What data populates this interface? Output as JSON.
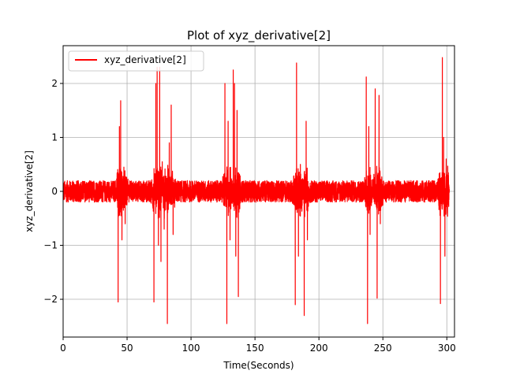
{
  "chart_data": {
    "type": "line",
    "title": "Plot of xyz_derivative[2]",
    "xlabel": "Time(Seconds)",
    "ylabel": "xyz_derivative[2]",
    "xlim": [
      0,
      306
    ],
    "ylim": [
      -2.7,
      2.7
    ],
    "xticks": [
      0,
      50,
      100,
      150,
      200,
      250,
      300
    ],
    "yticks": [
      -2,
      -1,
      0,
      1,
      2
    ],
    "grid": true,
    "legend_position": "top-left",
    "series": [
      {
        "name": "xyz_derivative[2]",
        "color": "#ff0000",
        "noise_amplitude": 0.2,
        "x_range": [
          0,
          302
        ],
        "events": [
          {
            "x": 43.0,
            "y": -2.05
          },
          {
            "x": 44.0,
            "y": 1.2
          },
          {
            "x": 45.0,
            "y": 1.68
          },
          {
            "x": 46.0,
            "y": -0.9
          },
          {
            "x": 47.5,
            "y": 0.45
          },
          {
            "x": 48.5,
            "y": -0.6
          },
          {
            "x": 71.0,
            "y": -2.05
          },
          {
            "x": 72.5,
            "y": 2.0
          },
          {
            "x": 73.5,
            "y": 2.3
          },
          {
            "x": 74.5,
            "y": -1.0
          },
          {
            "x": 75.5,
            "y": 2.3
          },
          {
            "x": 76.5,
            "y": -1.3
          },
          {
            "x": 77.5,
            "y": 0.55
          },
          {
            "x": 79.0,
            "y": -0.7
          },
          {
            "x": 81.5,
            "y": -2.45
          },
          {
            "x": 83.0,
            "y": 0.9
          },
          {
            "x": 84.5,
            "y": 1.6
          },
          {
            "x": 86.0,
            "y": -0.8
          },
          {
            "x": 126.5,
            "y": 2.0
          },
          {
            "x": 128.0,
            "y": -2.45
          },
          {
            "x": 129.0,
            "y": 1.3
          },
          {
            "x": 130.5,
            "y": -0.9
          },
          {
            "x": 133.0,
            "y": 2.25
          },
          {
            "x": 134.0,
            "y": 2.0
          },
          {
            "x": 135.0,
            "y": -1.2
          },
          {
            "x": 136.0,
            "y": 1.5
          },
          {
            "x": 137.0,
            "y": -1.95
          },
          {
            "x": 181.5,
            "y": -2.1
          },
          {
            "x": 182.5,
            "y": 2.38
          },
          {
            "x": 184.0,
            "y": -1.2
          },
          {
            "x": 185.5,
            "y": 0.5
          },
          {
            "x": 188.5,
            "y": -2.3
          },
          {
            "x": 190.0,
            "y": 1.3
          },
          {
            "x": 191.0,
            "y": -0.9
          },
          {
            "x": 237.0,
            "y": 2.12
          },
          {
            "x": 238.0,
            "y": -2.45
          },
          {
            "x": 239.0,
            "y": 1.2
          },
          {
            "x": 240.0,
            "y": -0.8
          },
          {
            "x": 244.0,
            "y": 1.9
          },
          {
            "x": 245.5,
            "y": -1.98
          },
          {
            "x": 247.0,
            "y": 1.78
          },
          {
            "x": 248.0,
            "y": -0.6
          },
          {
            "x": 295.0,
            "y": -2.08
          },
          {
            "x": 296.5,
            "y": 2.48
          },
          {
            "x": 297.5,
            "y": 1.0
          },
          {
            "x": 298.5,
            "y": -1.2
          },
          {
            "x": 299.5,
            "y": 0.6
          },
          {
            "x": 300.5,
            "y": -0.4
          }
        ]
      }
    ]
  }
}
